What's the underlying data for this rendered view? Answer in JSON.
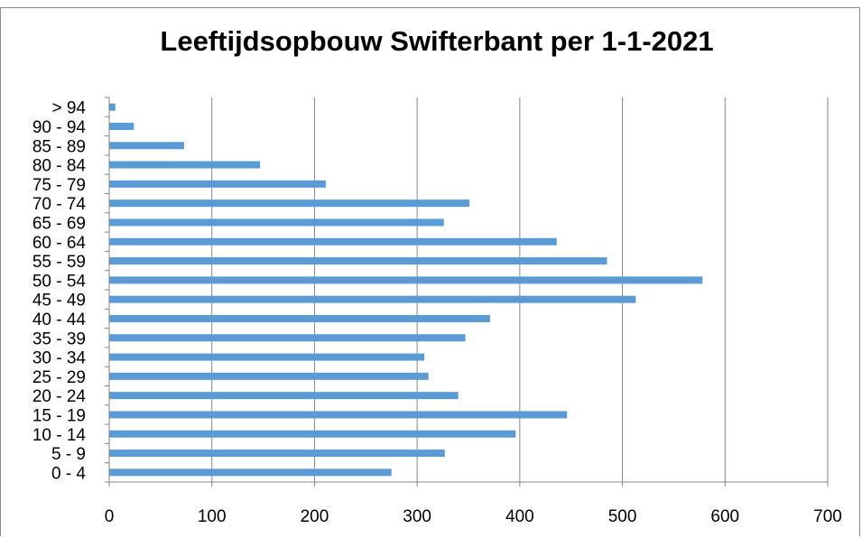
{
  "chart_data": {
    "type": "bar",
    "orientation": "horizontal",
    "title": "Leeftijdsopbouw Swifterbant per 1-1-2021",
    "xlabel": "",
    "ylabel": "",
    "xlim": [
      0,
      700
    ],
    "x_ticks": [
      "0",
      "100",
      "200",
      "300",
      "400",
      "500",
      "600",
      "700"
    ],
    "grid": "vertical",
    "legend": "none",
    "bar_color": "#5b9bd5",
    "categories": [
      "0 -  4",
      "5 -  9",
      "10 - 14",
      "15 - 19",
      "20 - 24",
      "25 - 29",
      "30 - 34",
      "35 - 39",
      "40 - 44",
      "45 - 49",
      "50 - 54",
      "55 - 59",
      "60 - 64",
      "65 - 69",
      "70 - 74",
      "75 - 79",
      "80 - 84",
      "85 - 89",
      "90 - 94",
      "> 94"
    ],
    "values": [
      275,
      327,
      396,
      446,
      340,
      311,
      307,
      347,
      371,
      513,
      578,
      485,
      436,
      326,
      351,
      211,
      147,
      73,
      24,
      6
    ]
  }
}
